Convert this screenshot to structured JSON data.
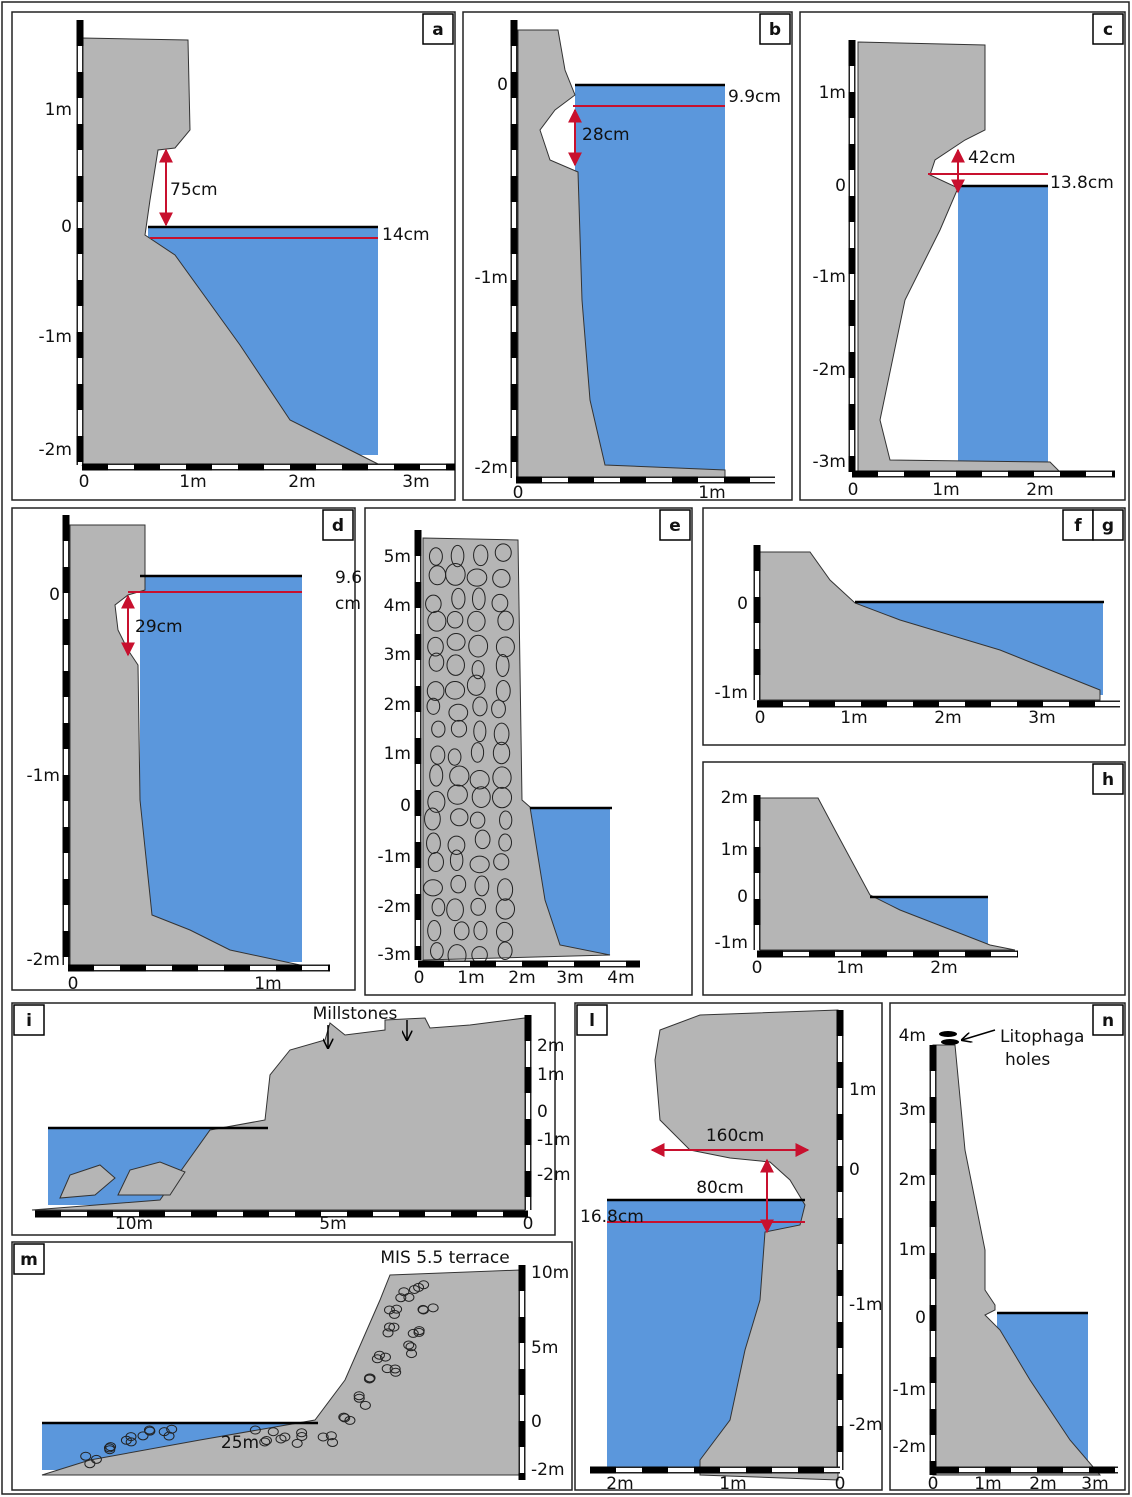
{
  "panels": [
    {
      "labels": [
        "a"
      ],
      "scale_left": [
        "1m",
        "0",
        "-1m",
        "-2m"
      ],
      "scale_bottom": [
        "0",
        "1m",
        "2m",
        "3m"
      ],
      "annotations": [
        "75cm",
        "14cm"
      ]
    },
    {
      "labels": [
        "b"
      ],
      "scale_left": [
        "0",
        "-1m",
        "-2m"
      ],
      "scale_bottom": [
        "0",
        "1m"
      ],
      "annotations": [
        "9.9cm",
        "28cm"
      ]
    },
    {
      "labels": [
        "c"
      ],
      "scale_left": [
        "1m",
        "0",
        "-1m",
        "-2m",
        "-3m"
      ],
      "scale_bottom": [
        "0",
        "1m",
        "2m"
      ],
      "annotations": [
        "42cm",
        "13.8cm"
      ]
    },
    {
      "labels": [
        "d"
      ],
      "scale_left": [
        "0",
        "-1m",
        "-2m"
      ],
      "scale_bottom": [
        "0",
        "1m"
      ],
      "annotations": [
        "9.6",
        "cm",
        "29cm"
      ]
    },
    {
      "labels": [
        "e"
      ],
      "scale_left": [
        "5m",
        "4m",
        "3m",
        "2m",
        "1m",
        "0",
        "-1m",
        "-2m",
        "-3m"
      ],
      "scale_bottom": [
        "0",
        "1m",
        "2m",
        "3m",
        "4m"
      ]
    },
    {
      "labels": [
        "f",
        "g"
      ],
      "scale_left": [
        "0",
        "-1m"
      ],
      "scale_bottom": [
        "0",
        "1m",
        "2m",
        "3m"
      ]
    },
    {
      "labels": [
        "h"
      ],
      "scale_left": [
        "2m",
        "1m",
        "0",
        "-1m"
      ],
      "scale_bottom": [
        "0",
        "1m",
        "2m"
      ]
    },
    {
      "labels": [
        "i"
      ],
      "scale_right": [
        "2m",
        "1m",
        "0",
        "-1m",
        "-2m"
      ],
      "scale_bottom": [
        "10m",
        "5m",
        "0"
      ],
      "annotations": [
        "Millstones"
      ]
    },
    {
      "labels": [
        "m"
      ],
      "scale_right": [
        "10m",
        "5m",
        "0",
        "-2m"
      ],
      "annotations": [
        "MIS 5.5 terrace",
        "25m"
      ]
    },
    {
      "labels": [
        "l"
      ],
      "scale_right": [
        "1m",
        "0",
        "-1m",
        "-2m"
      ],
      "scale_bottom": [
        "2m",
        "1m",
        "0"
      ],
      "annotations": [
        "160cm",
        "80cm",
        "16.8cm"
      ]
    },
    {
      "labels": [
        "n"
      ],
      "scale_left": [
        "4m",
        "3m",
        "2m",
        "1m",
        "0",
        "-1m",
        "-2m"
      ],
      "scale_bottom": [
        "0",
        "1m",
        "2m",
        "3m"
      ],
      "annotations": [
        "Litophaga",
        "holes"
      ]
    }
  ]
}
